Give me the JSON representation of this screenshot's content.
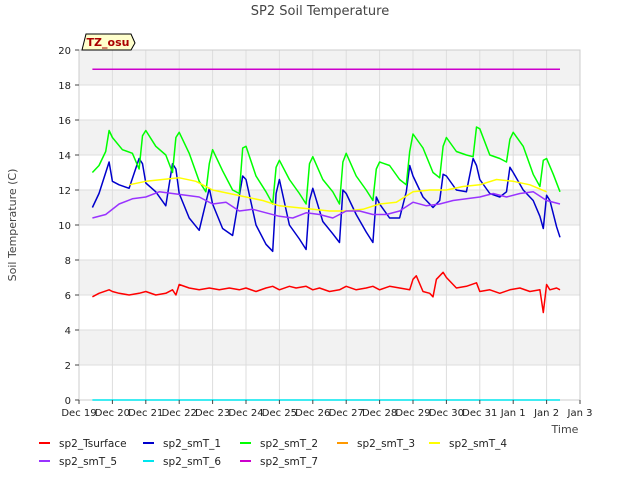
{
  "chart_data": {
    "type": "line",
    "title": "SP2 Soil Temperature",
    "xlabel": "Time",
    "ylabel": "Soil Temperature (C)",
    "site_badge": "TZ_osu",
    "ylim": [
      0,
      20
    ],
    "yticks": [
      0,
      2,
      4,
      6,
      8,
      10,
      12,
      14,
      16,
      18,
      20
    ],
    "xlim": [
      0,
      15
    ],
    "xticks": [
      {
        "pos": 0,
        "label": "Dec 19"
      },
      {
        "pos": 1,
        "label": "Dec 20"
      },
      {
        "pos": 2,
        "label": "Dec 21"
      },
      {
        "pos": 3,
        "label": "Dec 22"
      },
      {
        "pos": 4,
        "label": "Dec 23"
      },
      {
        "pos": 5,
        "label": "Dec 24"
      },
      {
        "pos": 6,
        "label": "Dec 25"
      },
      {
        "pos": 7,
        "label": "Dec 26"
      },
      {
        "pos": 8,
        "label": "Dec 27"
      },
      {
        "pos": 9,
        "label": "Dec 28"
      },
      {
        "pos": 10,
        "label": "Dec 29"
      },
      {
        "pos": 11,
        "label": "Dec 30"
      },
      {
        "pos": 12,
        "label": "Dec 31"
      },
      {
        "pos": 13,
        "label": "Jan 1"
      },
      {
        "pos": 14,
        "label": "Jan 2"
      },
      {
        "pos": 15,
        "label": "Jan 3"
      }
    ],
    "grid": true,
    "legend_position": "bottom",
    "series": [
      {
        "name": "sp2_Tsurface",
        "color": "#ff0000",
        "x": [
          0.4,
          0.6,
          0.9,
          1.0,
          1.2,
          1.5,
          1.8,
          2.0,
          2.3,
          2.6,
          2.8,
          2.9,
          3.0,
          3.3,
          3.6,
          3.9,
          4.2,
          4.5,
          4.8,
          5.0,
          5.3,
          5.6,
          5.8,
          6.0,
          6.3,
          6.5,
          6.8,
          7.0,
          7.2,
          7.5,
          7.8,
          8.0,
          8.3,
          8.6,
          8.8,
          9.0,
          9.3,
          9.6,
          9.9,
          10.0,
          10.1,
          10.3,
          10.5,
          10.6,
          10.7,
          10.9,
          11.0,
          11.3,
          11.6,
          11.9,
          12.0,
          12.3,
          12.6,
          12.9,
          13.2,
          13.5,
          13.8,
          13.9,
          14.0,
          14.1,
          14.3,
          14.4
        ],
        "y": [
          5.9,
          6.1,
          6.3,
          6.2,
          6.1,
          6.0,
          6.1,
          6.2,
          6.0,
          6.1,
          6.3,
          6.0,
          6.6,
          6.4,
          6.3,
          6.4,
          6.3,
          6.4,
          6.3,
          6.4,
          6.2,
          6.4,
          6.5,
          6.3,
          6.5,
          6.4,
          6.5,
          6.3,
          6.4,
          6.2,
          6.3,
          6.5,
          6.3,
          6.4,
          6.5,
          6.3,
          6.5,
          6.4,
          6.3,
          6.9,
          7.1,
          6.2,
          6.1,
          5.9,
          6.9,
          7.3,
          7.0,
          6.4,
          6.5,
          6.7,
          6.2,
          6.3,
          6.1,
          6.3,
          6.4,
          6.2,
          6.3,
          5.0,
          6.6,
          6.3,
          6.4,
          6.3
        ]
      },
      {
        "name": "sp2_smT_1",
        "color": "#0000cc",
        "x": [
          0.4,
          0.6,
          0.9,
          1.0,
          1.2,
          1.5,
          1.8,
          1.9,
          2.0,
          2.3,
          2.6,
          2.8,
          2.9,
          3.0,
          3.3,
          3.6,
          3.9,
          4.0,
          4.3,
          4.6,
          4.9,
          5.0,
          5.3,
          5.6,
          5.8,
          5.9,
          6.0,
          6.3,
          6.6,
          6.8,
          6.9,
          7.0,
          7.3,
          7.6,
          7.8,
          7.9,
          8.0,
          8.3,
          8.6,
          8.8,
          8.9,
          9.0,
          9.3,
          9.6,
          9.8,
          9.9,
          10.0,
          10.3,
          10.6,
          10.8,
          10.9,
          11.0,
          11.3,
          11.6,
          11.8,
          11.9,
          12.0,
          12.3,
          12.6,
          12.8,
          12.9,
          13.0,
          13.3,
          13.6,
          13.8,
          13.9,
          14.0,
          14.1,
          14.3,
          14.4
        ],
        "y": [
          11.0,
          11.8,
          13.6,
          12.5,
          12.3,
          12.1,
          13.8,
          13.5,
          12.4,
          11.9,
          11.1,
          13.5,
          13.2,
          11.8,
          10.4,
          9.7,
          12.1,
          11.2,
          9.8,
          9.4,
          12.8,
          12.6,
          10.0,
          8.9,
          8.5,
          11.8,
          12.6,
          10.0,
          9.2,
          8.6,
          11.4,
          12.1,
          10.2,
          9.5,
          9.0,
          12.0,
          11.8,
          10.6,
          9.6,
          9.0,
          11.6,
          11.2,
          10.4,
          10.4,
          11.9,
          13.4,
          12.8,
          11.6,
          11.0,
          11.4,
          12.9,
          12.8,
          12.0,
          11.9,
          13.8,
          13.4,
          12.6,
          11.8,
          11.6,
          11.9,
          13.3,
          13.0,
          12.0,
          11.4,
          10.5,
          9.8,
          11.7,
          11.4,
          9.9,
          9.3
        ]
      },
      {
        "name": "sp2_smT_2",
        "color": "#00ff00",
        "x": [
          0.4,
          0.6,
          0.8,
          0.9,
          1.0,
          1.3,
          1.6,
          1.8,
          1.9,
          2.0,
          2.3,
          2.6,
          2.8,
          2.9,
          3.0,
          3.3,
          3.6,
          3.8,
          3.9,
          4.0,
          4.3,
          4.6,
          4.8,
          4.9,
          5.0,
          5.3,
          5.6,
          5.8,
          5.9,
          6.0,
          6.3,
          6.6,
          6.8,
          6.9,
          7.0,
          7.3,
          7.6,
          7.8,
          7.9,
          8.0,
          8.3,
          8.6,
          8.8,
          8.9,
          9.0,
          9.3,
          9.6,
          9.8,
          9.9,
          10.0,
          10.3,
          10.6,
          10.8,
          10.9,
          11.0,
          11.3,
          11.6,
          11.8,
          11.9,
          12.0,
          12.3,
          12.6,
          12.8,
          12.9,
          13.0,
          13.3,
          13.6,
          13.8,
          13.9,
          14.0,
          14.2,
          14.4
        ],
        "y": [
          13.0,
          13.4,
          14.2,
          15.4,
          15.0,
          14.3,
          14.1,
          13.2,
          15.1,
          15.4,
          14.5,
          14.0,
          13.0,
          15.0,
          15.3,
          14.1,
          12.5,
          11.9,
          13.5,
          14.3,
          13.1,
          12.0,
          11.8,
          14.4,
          14.5,
          12.8,
          11.9,
          11.2,
          13.3,
          13.7,
          12.6,
          11.8,
          11.2,
          13.5,
          13.9,
          12.6,
          11.9,
          11.2,
          13.6,
          14.1,
          12.8,
          12.0,
          11.4,
          13.2,
          13.6,
          13.4,
          12.6,
          12.3,
          14.2,
          15.2,
          14.4,
          13.0,
          12.7,
          14.5,
          15.0,
          14.2,
          14.0,
          13.9,
          15.6,
          15.5,
          14.0,
          13.8,
          13.6,
          14.9,
          15.3,
          14.5,
          12.9,
          12.2,
          13.7,
          13.8,
          12.9,
          11.9
        ]
      },
      {
        "name": "sp2_smT_3",
        "color": "#ff9900",
        "x": [],
        "y": []
      },
      {
        "name": "sp2_smT_4",
        "color": "#ffff00",
        "x": [
          1.5,
          2.0,
          2.5,
          3.0,
          3.5,
          4.0,
          4.5,
          5.0,
          5.5,
          6.0,
          6.5,
          7.0,
          7.5,
          8.0,
          8.5,
          9.0,
          9.5,
          10.0,
          10.5,
          11.0,
          11.5,
          12.0,
          12.5,
          13.0,
          13.5,
          14.0
        ],
        "y": [
          12.3,
          12.5,
          12.6,
          12.7,
          12.5,
          12.0,
          11.8,
          11.6,
          11.4,
          11.1,
          11.0,
          10.9,
          10.8,
          10.8,
          10.9,
          11.2,
          11.3,
          11.9,
          12.0,
          12.0,
          12.2,
          12.3,
          12.6,
          12.5,
          12.3,
          11.9
        ]
      },
      {
        "name": "sp2_smT_5",
        "color": "#9933ff",
        "x": [
          0.4,
          0.8,
          1.2,
          1.6,
          2.0,
          2.4,
          2.8,
          3.2,
          3.6,
          4.0,
          4.4,
          4.8,
          5.2,
          5.6,
          6.0,
          6.4,
          6.8,
          7.2,
          7.6,
          8.0,
          8.4,
          8.8,
          9.2,
          9.6,
          10.0,
          10.4,
          10.8,
          11.2,
          11.6,
          12.0,
          12.4,
          12.8,
          13.2,
          13.6,
          14.0,
          14.4
        ],
        "y": [
          10.4,
          10.6,
          11.2,
          11.5,
          11.6,
          11.9,
          11.8,
          11.7,
          11.6,
          11.2,
          11.3,
          10.8,
          10.9,
          10.7,
          10.5,
          10.4,
          10.7,
          10.6,
          10.4,
          10.8,
          10.8,
          10.6,
          10.6,
          10.8,
          11.3,
          11.1,
          11.2,
          11.4,
          11.5,
          11.6,
          11.8,
          11.6,
          11.8,
          11.9,
          11.4,
          11.2
        ]
      },
      {
        "name": "sp2_smT_6",
        "color": "#00e5ee",
        "x": [
          0.4,
          14.4
        ],
        "y": [
          0.0,
          0.0
        ]
      },
      {
        "name": "sp2_smT_7",
        "color": "#cc00cc",
        "x": [
          0.4,
          14.4
        ],
        "y": [
          18.9,
          18.9
        ]
      }
    ]
  }
}
